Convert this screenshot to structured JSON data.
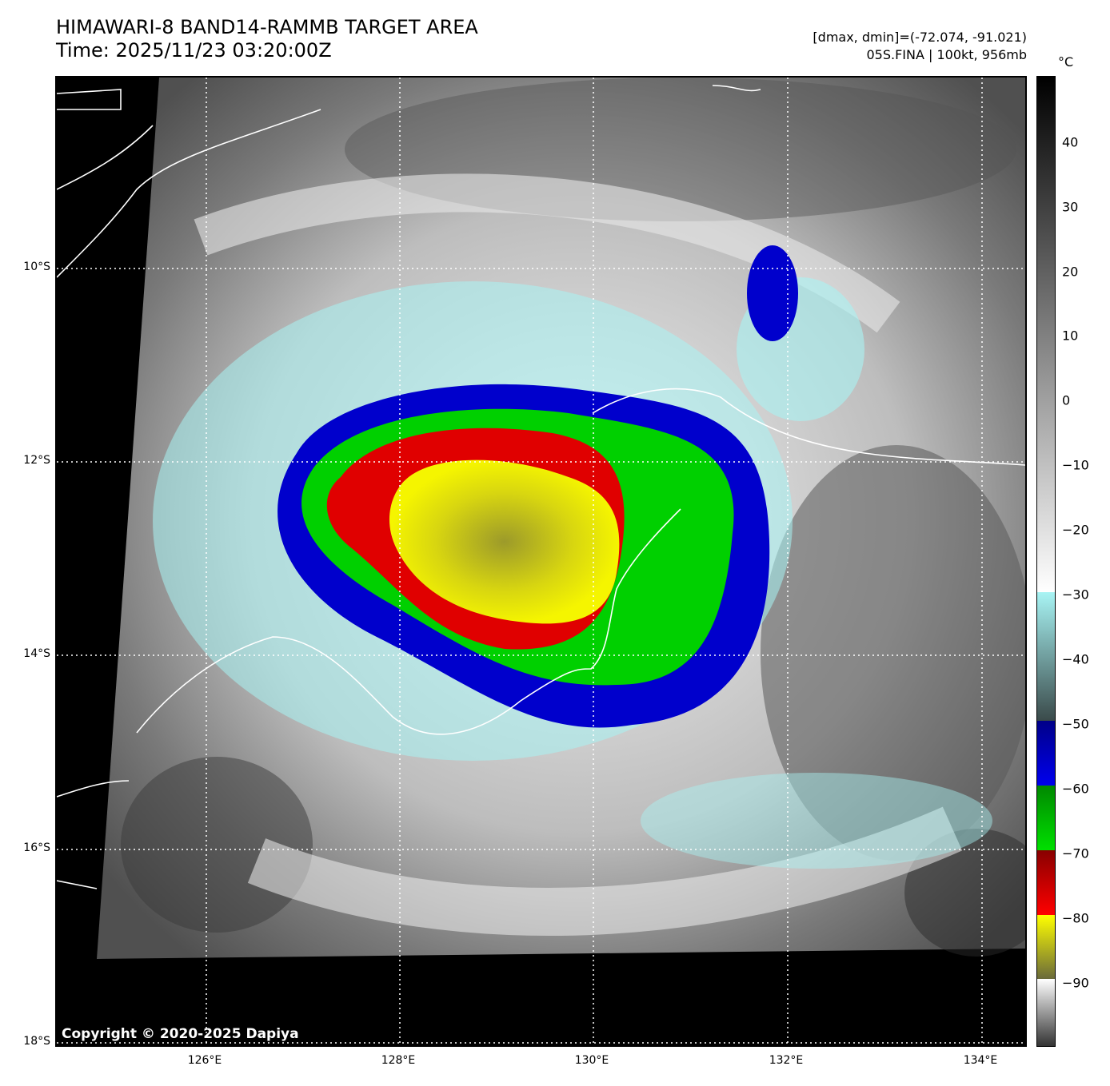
{
  "header": {
    "title_line1": "HIMAWARI-8 BAND14-RAMMB TARGET AREA",
    "title_line2": "Time: 2025/11/23 03:20:00Z",
    "range_text": "[dmax, dmin]=(-72.074, -91.021)",
    "storm_text": "05S.FINA | 100kt, 956mb"
  },
  "map": {
    "copyright": "Copyright © 2020-2025 Dapiya",
    "lat_labels": [
      "10°S",
      "12°S",
      "14°S",
      "16°S",
      "18°S"
    ],
    "lon_labels": [
      "126°E",
      "128°E",
      "130°E",
      "132°E",
      "134°E"
    ]
  },
  "colorbar": {
    "unit": "°C",
    "ticks": [
      "40",
      "30",
      "20",
      "10",
      "0",
      "−10",
      "−20",
      "−30",
      "−40",
      "−50",
      "−60",
      "−70",
      "−80",
      "−90"
    ],
    "colors": {
      "yellow": "#f5f500",
      "red": "#e00000",
      "green": "#00d000",
      "blue": "#0000cc",
      "cyan": "#a8f4f4"
    }
  }
}
